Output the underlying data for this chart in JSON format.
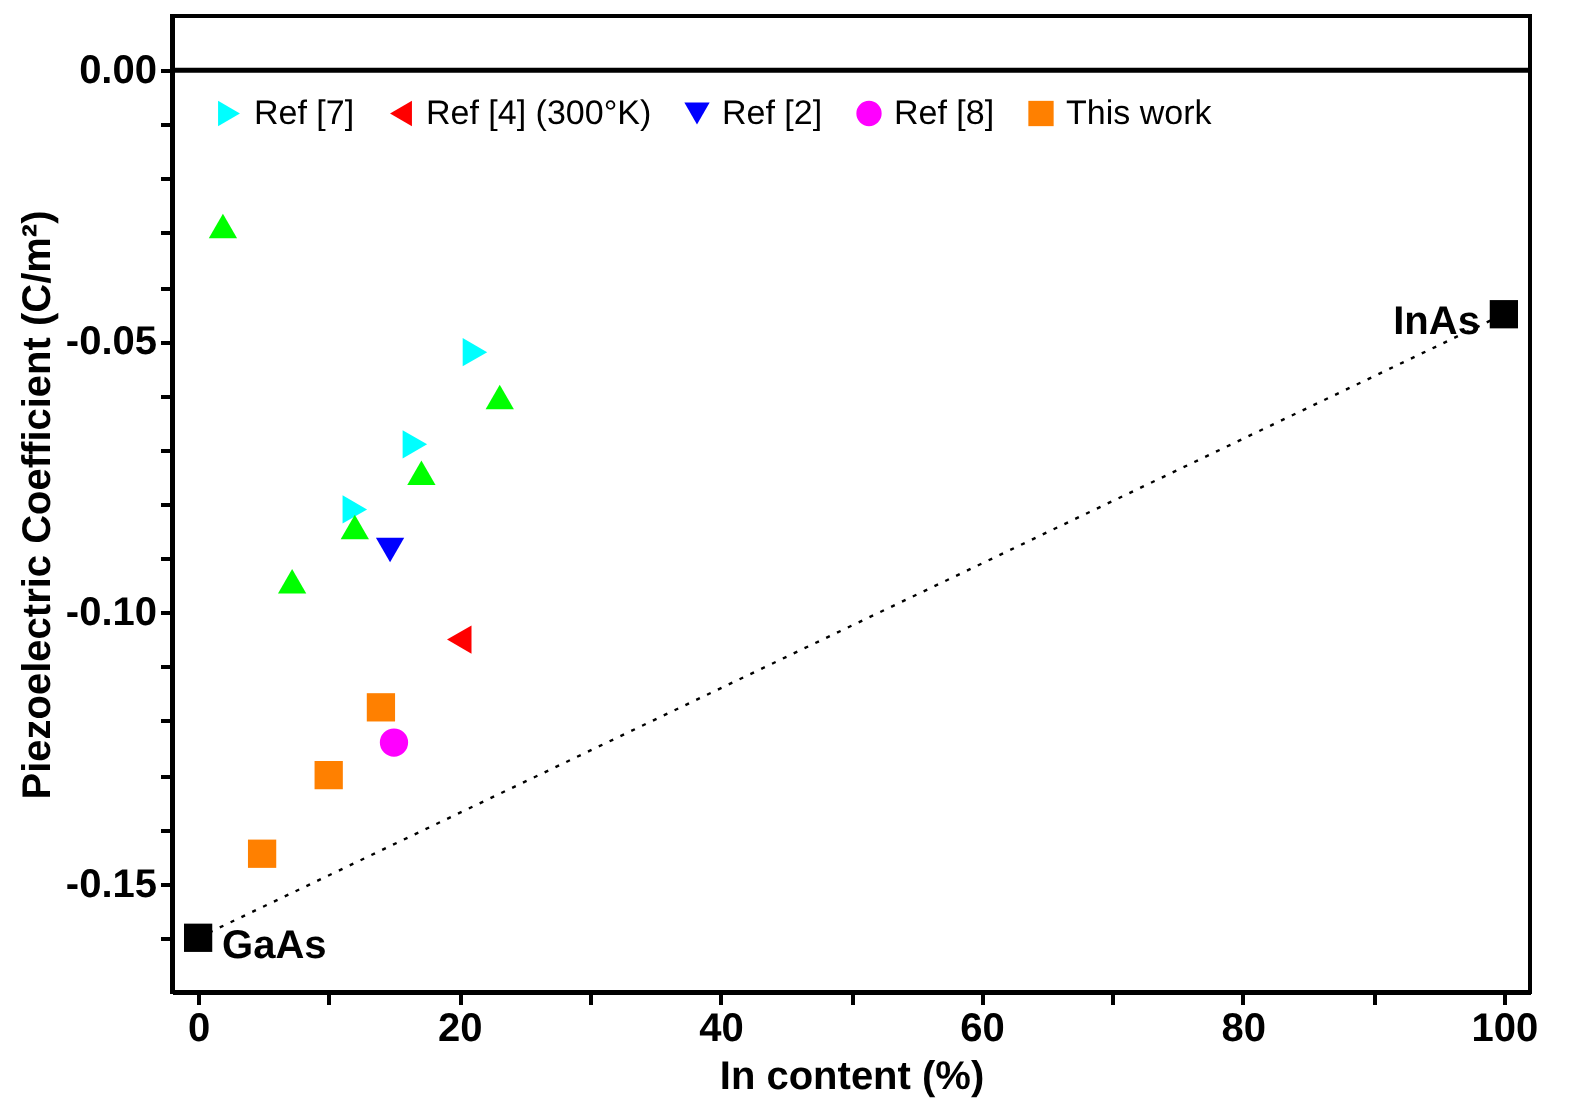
{
  "chart_data": {
    "type": "scatter",
    "xlabel": "In content (%)",
    "ylabel": "Piezoelectric Coefficient  (C/m²)",
    "xlim": [
      -2,
      102
    ],
    "ylim": [
      -0.17,
      0.01
    ],
    "xticks": [
      0,
      {
        "value": 10,
        "label": null
      },
      20,
      {
        "value": 30,
        "label": null
      },
      40,
      {
        "value": 50,
        "label": null
      },
      60,
      {
        "value": 70,
        "label": null
      },
      80,
      {
        "value": 90,
        "label": null
      },
      100
    ],
    "yticks": [
      {
        "value": 0,
        "label": "0.00"
      },
      {
        "value": -0.01,
        "label": null
      },
      {
        "value": -0.02,
        "label": null
      },
      {
        "value": -0.03,
        "label": null
      },
      {
        "value": -0.04,
        "label": null
      },
      {
        "value": -0.05,
        "label": "-0.05"
      },
      {
        "value": -0.06,
        "label": null
      },
      {
        "value": -0.07,
        "label": null
      },
      {
        "value": -0.08,
        "label": null
      },
      {
        "value": -0.09,
        "label": null
      },
      {
        "value": -0.1,
        "label": "-0.10"
      },
      {
        "value": -0.11,
        "label": null
      },
      {
        "value": -0.12,
        "label": null
      },
      {
        "value": -0.13,
        "label": null
      },
      {
        "value": -0.14,
        "label": null
      },
      {
        "value": -0.15,
        "label": "-0.15"
      },
      {
        "value": -0.16,
        "label": null
      }
    ],
    "grid": false,
    "legend": "top left",
    "ref_lines": [
      {
        "axis": "y",
        "value": 0,
        "color": "#000000",
        "line_style": "solid"
      }
    ],
    "annotations": [
      {
        "text": "GaAs",
        "x": 0,
        "y": -0.16
      },
      {
        "text": "InAs",
        "x": 100,
        "y": -0.045
      }
    ],
    "series": [
      {
        "type": "line",
        "color": "#000000",
        "line_style": "dotted",
        "marker": "none",
        "x": [
          0,
          100
        ],
        "values": [
          -0.16,
          -0.045
        ]
      },
      {
        "name": "Ref [7]",
        "color": "#00ffff",
        "marker": "triangle-right",
        "x": [
          21.2,
          16.6,
          12.0
        ],
        "values": [
          -0.052,
          -0.069,
          -0.081
        ]
      },
      {
        "name": "Ref [4] (300°K)",
        "color": "#ff0000",
        "marker": "triangle-left",
        "x": [
          20
        ],
        "values": [
          -0.105
        ]
      },
      {
        "name": "Ref [2]",
        "color": "#0000ff",
        "marker": "triangle-down",
        "x": [
          14.7
        ],
        "values": [
          -0.0885
        ]
      },
      {
        "name": "Ref [8]",
        "color": "#ff00ff",
        "marker": "circle",
        "x": [
          15
        ],
        "values": [
          -0.124
        ]
      },
      {
        "name": "This work",
        "color": "#ff8000",
        "marker": "square",
        "x": [
          4.9,
          10.0,
          14.0
        ],
        "values": [
          -0.1445,
          -0.13,
          -0.1175
        ]
      },
      {
        "color": "#00ff00",
        "marker": "triangle",
        "x": [
          1.9,
          7.2,
          12.0,
          17.1,
          23.1
        ],
        "values": [
          -0.0295,
          -0.095,
          -0.085,
          -0.075,
          -0.061
        ]
      },
      {
        "color": "#000000",
        "marker": "square",
        "x": [
          0,
          100
        ],
        "values": [
          -0.16,
          -0.045
        ]
      }
    ]
  }
}
